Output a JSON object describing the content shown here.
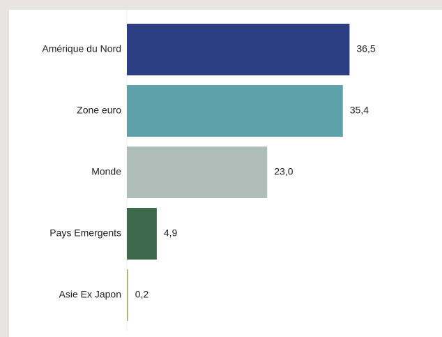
{
  "chart_data": {
    "type": "bar",
    "orientation": "horizontal",
    "categories": [
      "Amérique du Nord",
      "Zone euro",
      "Monde",
      "Pays Emergents",
      "Asie Ex Japon"
    ],
    "values": [
      36.5,
      35.4,
      23.0,
      4.9,
      0.2
    ],
    "value_labels": [
      "36,5",
      "35,4",
      "23,0",
      "4,9",
      "0,2"
    ],
    "colors": [
      "#2e3e82",
      "#5fa1ab",
      "#adbfb8",
      "#3e6a4c",
      "#9cb86a"
    ],
    "title": "",
    "xlabel": "",
    "ylabel": "",
    "xlim": [
      0,
      40
    ],
    "grid": false,
    "legend": "none"
  }
}
